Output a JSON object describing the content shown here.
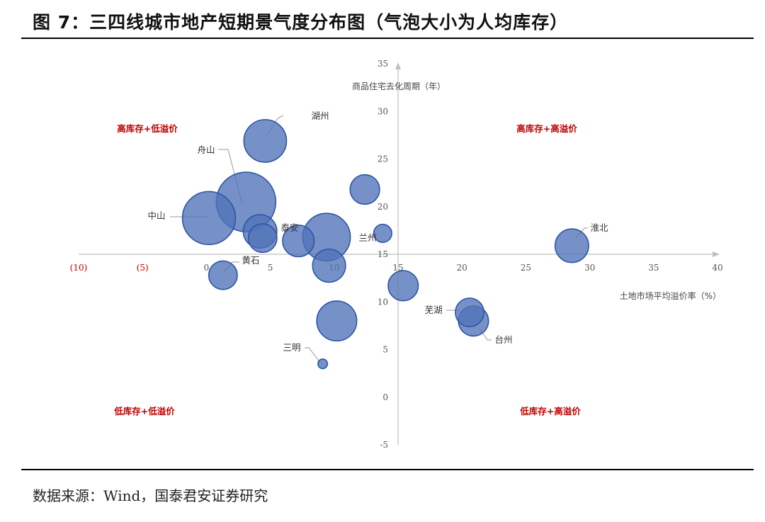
{
  "title": "图 7：三四线城市地产短期景气度分布图（气泡大小为人均库存）",
  "source": "数据来源：Wind，国泰君安证券研究",
  "chart_data": {
    "type": "bubble",
    "title": "图 7：三四线城市地产短期景气度分布图（气泡大小为人均库存）",
    "xlabel": "土地市场平均溢价率（%）",
    "ylabel": "商品住宅去化周期（年）",
    "xlim": [
      -10,
      40
    ],
    "ylim": [
      -5,
      35
    ],
    "x_ticks": [
      "(10)",
      "(5)",
      "0",
      "5",
      "10",
      "15",
      "20",
      "25",
      "30",
      "35",
      "40"
    ],
    "y_ticks": [
      "35",
      "30",
      "25",
      "20",
      "15",
      "10",
      "5",
      "0",
      "-5"
    ],
    "x_axis_crosses_y": 15,
    "y_axis_crosses_x": 15,
    "grid": false,
    "bubble_color": "#4f72b8",
    "quadrant_labels": {
      "top_left": "高库存+低溢价",
      "top_right": "高库存+高溢价",
      "bottom_left": "低库存+低溢价",
      "bottom_right": "低库存+高溢价"
    },
    "points": [
      {
        "label": "湖州",
        "x": 4.6,
        "y": 26.9,
        "size": 1.0
      },
      {
        "label": "舟山",
        "x": 3.1,
        "y": 20.5,
        "size": 1.95
      },
      {
        "label": "中山",
        "x": 0.2,
        "y": 18.8,
        "size": 1.55
      },
      {
        "label": "",
        "x": 4.2,
        "y": 17.4,
        "size": 0.62
      },
      {
        "label": "泰安",
        "x": 4.4,
        "y": 16.7,
        "size": 0.45
      },
      {
        "label": "",
        "x": 7.2,
        "y": 16.4,
        "size": 0.55
      },
      {
        "label": "",
        "x": 9.4,
        "y": 16.8,
        "size": 1.25
      },
      {
        "label": "",
        "x": 12.4,
        "y": 21.8,
        "size": 0.48
      },
      {
        "label": "兰州",
        "x": 13.8,
        "y": 17.2,
        "size": 0.18
      },
      {
        "label": "",
        "x": 9.6,
        "y": 13.8,
        "size": 0.6
      },
      {
        "label": "黄石",
        "x": 1.3,
        "y": 12.8,
        "size": 0.45
      },
      {
        "label": "",
        "x": 15.4,
        "y": 11.7,
        "size": 0.5
      },
      {
        "label": "",
        "x": 10.2,
        "y": 8.0,
        "size": 0.88
      },
      {
        "label": "三明",
        "x": 9.1,
        "y": 3.5,
        "size": 0.05
      },
      {
        "label": "芜湖",
        "x": 20.6,
        "y": 8.9,
        "size": 0.45
      },
      {
        "label": "台州",
        "x": 20.9,
        "y": 8.0,
        "size": 0.5
      },
      {
        "label": "淮北",
        "x": 28.6,
        "y": 15.9,
        "size": 0.62
      }
    ]
  }
}
